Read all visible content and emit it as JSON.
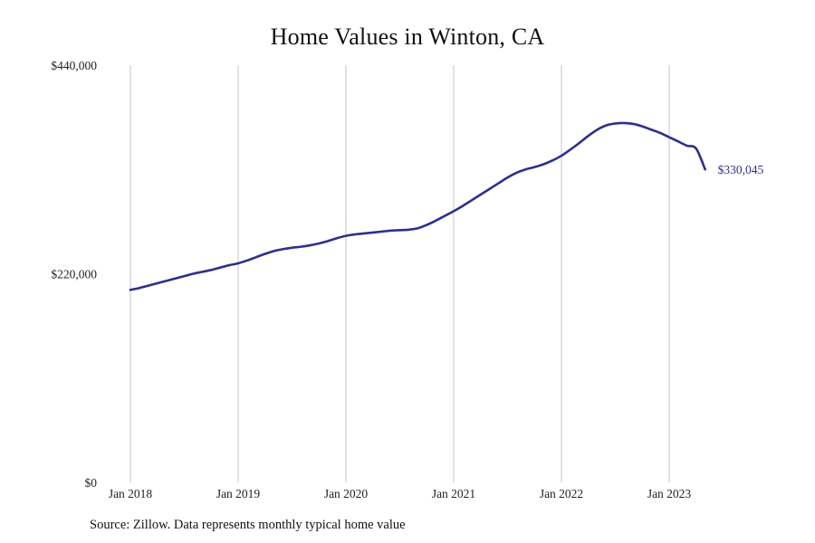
{
  "chart_data": {
    "type": "line",
    "title": "Home Values in Winton, CA",
    "source_note": "Source: Zillow. Data represents monthly typical home value",
    "xlabel": "",
    "ylabel": "",
    "x_tick_labels": [
      "Jan 2018",
      "Jan 2019",
      "Jan 2020",
      "Jan 2021",
      "Jan 2022",
      "Jan 2023"
    ],
    "y_tick_labels": [
      "$0",
      "$220,000",
      "$440,000"
    ],
    "y_ticks": [
      0,
      220000,
      440000
    ],
    "ylim": [
      0,
      440000
    ],
    "xlim": [
      "2018-01",
      "2023-05"
    ],
    "grid": "vertical lines at each January",
    "legend": "none",
    "end_label": "$330,045",
    "line_color": "#2e2f8c",
    "series": [
      {
        "x": [
          "2018-01",
          "2018-02",
          "2018-03",
          "2018-04",
          "2018-05",
          "2018-06",
          "2018-07",
          "2018-08",
          "2018-09",
          "2018-10",
          "2018-11",
          "2018-12",
          "2019-01",
          "2019-02",
          "2019-03",
          "2019-04",
          "2019-05",
          "2019-06",
          "2019-07",
          "2019-08",
          "2019-09",
          "2019-10",
          "2019-11",
          "2019-12",
          "2020-01",
          "2020-02",
          "2020-03",
          "2020-04",
          "2020-05",
          "2020-06",
          "2020-07",
          "2020-08",
          "2020-09",
          "2020-10",
          "2020-11",
          "2020-12",
          "2021-01",
          "2021-02",
          "2021-03",
          "2021-04",
          "2021-05",
          "2021-06",
          "2021-07",
          "2021-08",
          "2021-09",
          "2021-10",
          "2021-11",
          "2021-12",
          "2022-01",
          "2022-02",
          "2022-03",
          "2022-04",
          "2022-05",
          "2022-06",
          "2022-07",
          "2022-08",
          "2022-09",
          "2022-10",
          "2022-11",
          "2022-12",
          "2023-01",
          "2023-02",
          "2023-03",
          "2023-04",
          "2023-05"
        ],
        "values": [
          203000,
          205000,
          207500,
          210000,
          212500,
          215000,
          217500,
          220000,
          222000,
          224000,
          226500,
          229000,
          231000,
          234000,
          237500,
          241000,
          244000,
          246000,
          247500,
          248500,
          250000,
          252000,
          254500,
          257500,
          260000,
          261500,
          262500,
          263500,
          264500,
          265500,
          266000,
          266500,
          268000,
          271500,
          276000,
          281000,
          286000,
          291500,
          297500,
          303500,
          309500,
          315500,
          321500,
          326500,
          330000,
          332500,
          335500,
          339500,
          344500,
          351000,
          358000,
          365500,
          372000,
          376500,
          378500,
          379000,
          378000,
          375500,
          372000,
          368500,
          364000,
          359500,
          355000,
          352000,
          330045
        ]
      }
    ]
  }
}
